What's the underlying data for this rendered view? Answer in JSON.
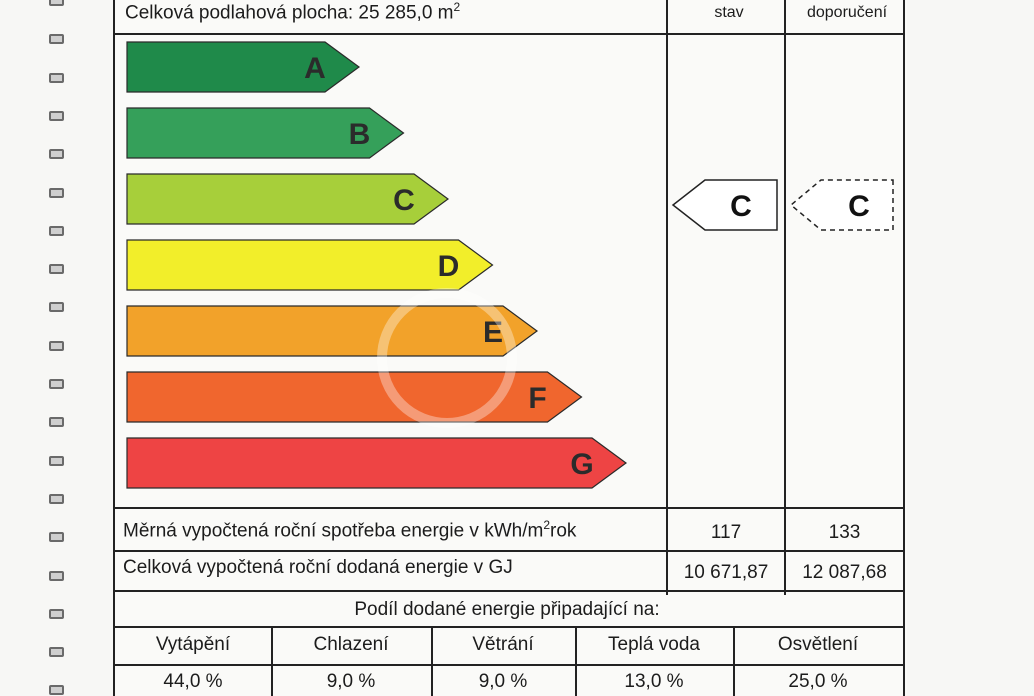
{
  "header": {
    "floor_area_label": "Celková podlahová plocha: 25 285,0 m",
    "floor_area_sup": "2",
    "col_current": "stav",
    "col_recommended": "doporučení"
  },
  "scale": {
    "classes": [
      {
        "letter": "A",
        "color": "#1f8a4a"
      },
      {
        "letter": "B",
        "color": "#35a05a"
      },
      {
        "letter": "C",
        "color": "#a7cf3a"
      },
      {
        "letter": "D",
        "color": "#f2ee2a"
      },
      {
        "letter": "E",
        "color": "#f2a22a"
      },
      {
        "letter": "F",
        "color": "#f0662e"
      },
      {
        "letter": "G",
        "color": "#ee4444"
      }
    ],
    "current_class": "C",
    "recommended_class": "C"
  },
  "specific_consumption": {
    "label": "Měrná vypočtená roční spotřeba energie v kWh/m",
    "label_sup": "2",
    "label_suffix": "rok",
    "current": "117",
    "recommended": "133"
  },
  "total_energy": {
    "label": "Celková vypočtená roční dodaná energie v GJ",
    "current": "10 671,87",
    "recommended": "12 087,68"
  },
  "shares": {
    "title": "Podíl dodané energie připadající na:",
    "items": [
      {
        "label": "Vytápění",
        "value": "44,0 %"
      },
      {
        "label": "Chlazení",
        "value": "9,0 %"
      },
      {
        "label": "Větrání",
        "value": "9,0 %"
      },
      {
        "label": "Teplá voda",
        "value": "13,0 %"
      },
      {
        "label": "Osvětlení",
        "value": "25,0 %"
      }
    ]
  }
}
